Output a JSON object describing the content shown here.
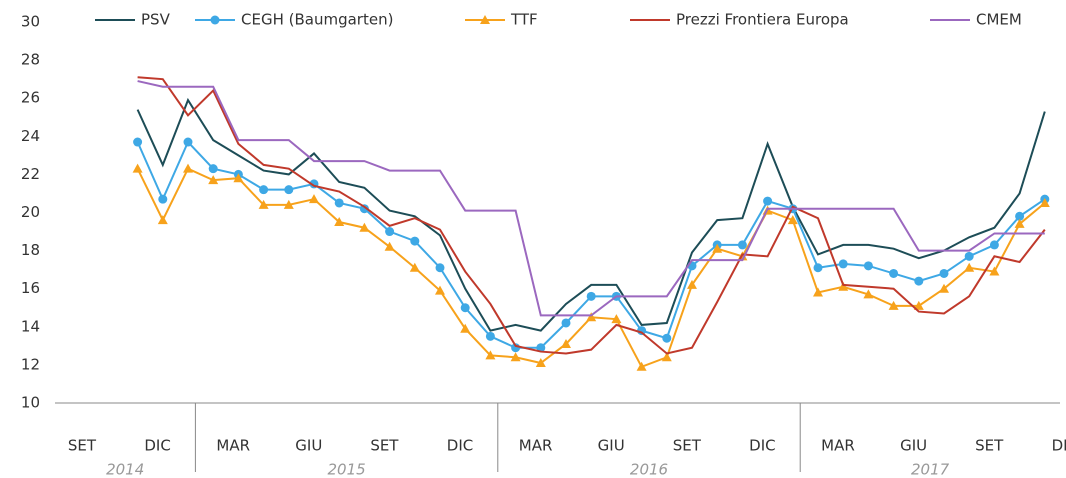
{
  "chart_data": {
    "type": "line",
    "categories": [
      "SET",
      null,
      null,
      "DIC",
      null,
      null,
      "MAR",
      null,
      null,
      "GIU",
      null,
      null,
      "SET",
      null,
      null,
      "DIC",
      null,
      null,
      "MAR",
      null,
      null,
      "GIU",
      null,
      null,
      "SET",
      null,
      null,
      "DIC",
      null,
      null,
      "MAR",
      null,
      null,
      "GIU",
      null,
      null,
      "SET",
      null,
      null,
      "DIC"
    ],
    "years": [
      "2014",
      "2015",
      "2016",
      "2017"
    ],
    "ylim": [
      10,
      30
    ],
    "yticks": [
      10,
      12,
      14,
      16,
      18,
      20,
      22,
      24,
      26,
      28,
      30
    ],
    "grid": false,
    "legend": "top",
    "series": [
      {
        "name": "PSV",
        "color": "#1d4d57",
        "marker": "none",
        "values": [
          null,
          null,
          null,
          25.4,
          22.5,
          25.9,
          23.8,
          23.0,
          22.2,
          22.0,
          23.1,
          21.6,
          21.3,
          20.1,
          19.8,
          18.8,
          16.0,
          13.8,
          14.1,
          13.8,
          15.2,
          16.2,
          16.2,
          14.1,
          14.2,
          17.9,
          19.6,
          19.7,
          23.6,
          20.3,
          17.8,
          18.3,
          18.3,
          18.1,
          17.6,
          18.0,
          18.7,
          19.2,
          21.0,
          25.3
        ]
      },
      {
        "name": "CEGH (Baumgarten)",
        "color": "#3ea8e5",
        "marker": "circle",
        "values": [
          null,
          null,
          null,
          23.7,
          20.7,
          23.7,
          22.3,
          22.0,
          21.2,
          21.2,
          21.5,
          20.5,
          20.2,
          19.0,
          18.5,
          17.1,
          15.0,
          13.5,
          12.9,
          12.9,
          14.2,
          15.6,
          15.6,
          13.8,
          13.4,
          17.2,
          18.3,
          18.3,
          20.6,
          20.2,
          17.1,
          17.3,
          17.2,
          16.8,
          16.4,
          16.8,
          17.7,
          18.3,
          19.8,
          20.7
        ]
      },
      {
        "name": "TTF",
        "color": "#f7a21b",
        "marker": "triangle",
        "values": [
          null,
          null,
          null,
          22.3,
          19.6,
          22.3,
          21.7,
          21.8,
          20.4,
          20.4,
          20.7,
          19.5,
          19.2,
          18.2,
          17.1,
          15.9,
          13.9,
          12.5,
          12.4,
          12.1,
          13.1,
          14.5,
          14.4,
          11.9,
          12.4,
          16.2,
          18.1,
          17.7,
          20.1,
          19.6,
          15.8,
          16.1,
          15.7,
          15.1,
          15.1,
          16.0,
          17.1,
          16.9,
          19.4,
          20.5
        ]
      },
      {
        "name": "Prezzi Frontiera Europa",
        "color": "#c0392b",
        "marker": "none",
        "values": [
          null,
          null,
          null,
          27.1,
          27.0,
          25.1,
          26.4,
          23.6,
          22.5,
          22.3,
          21.4,
          21.1,
          20.3,
          19.3,
          19.7,
          19.1,
          16.9,
          15.2,
          13.0,
          12.7,
          12.6,
          12.8,
          14.1,
          13.7,
          12.6,
          12.9,
          15.3,
          17.8,
          17.7,
          20.3,
          19.7,
          16.2,
          16.1,
          16.0,
          14.8,
          14.7,
          15.6,
          17.7,
          17.4,
          19.1
        ]
      },
      {
        "name": "CMEM",
        "color": "#9b68bf",
        "marker": "none",
        "values": [
          null,
          null,
          null,
          26.9,
          26.6,
          26.6,
          26.6,
          23.8,
          23.8,
          23.8,
          22.7,
          22.7,
          22.7,
          22.2,
          22.2,
          22.2,
          20.1,
          20.1,
          20.1,
          14.6,
          14.6,
          14.6,
          15.6,
          15.6,
          15.6,
          17.5,
          17.5,
          17.5,
          20.2,
          20.2,
          20.2,
          20.2,
          20.2,
          20.2,
          18.0,
          18.0,
          18.0,
          18.9,
          18.9,
          18.9
        ]
      }
    ]
  }
}
